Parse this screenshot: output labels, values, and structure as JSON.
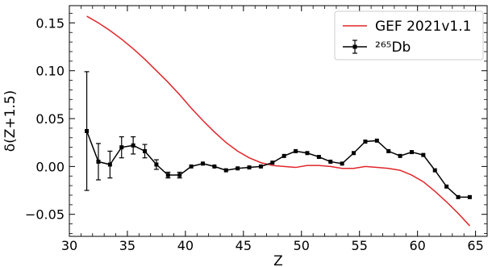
{
  "chart_data": {
    "type": "line",
    "xlabel": "Z",
    "ylabel": "δ(Z+1.5)",
    "xlim": [
      30,
      66
    ],
    "ylim": [
      -0.073,
      0.168
    ],
    "xticks": [
      30,
      35,
      40,
      45,
      50,
      55,
      60,
      65
    ],
    "xtick_labels": [
      "30",
      "35",
      "40",
      "45",
      "50",
      "55",
      "60",
      "65"
    ],
    "yticks": [
      -0.05,
      0.0,
      0.05,
      0.1,
      0.15
    ],
    "ytick_labels": [
      "−0.05",
      "0.00",
      "0.05",
      "0.10",
      "0.15"
    ],
    "grid": false,
    "legend_position": "top-right",
    "series": [
      {
        "name": "GEF 2021v1.1",
        "color": "#e0262a",
        "style": "line",
        "x": [
          31.5,
          32.5,
          33.5,
          34.5,
          35.5,
          36.5,
          37.5,
          38.5,
          39.5,
          40.5,
          41.5,
          42.5,
          43.5,
          44.5,
          45.5,
          46.5,
          47.5,
          48.5,
          49.5,
          50.5,
          51.5,
          52.5,
          53.5,
          54.5,
          55.5,
          56.5,
          57.5,
          58.5,
          59.5,
          60.5,
          61.5,
          62.5,
          63.5,
          64.5
        ],
        "y": [
          0.157,
          0.15,
          0.142,
          0.133,
          0.123,
          0.112,
          0.1,
          0.088,
          0.075,
          0.061,
          0.048,
          0.036,
          0.025,
          0.016,
          0.009,
          0.004,
          0.001,
          0.0,
          -0.001,
          0.001,
          0.001,
          0.0,
          -0.002,
          -0.002,
          0.0,
          -0.001,
          -0.002,
          -0.004,
          -0.009,
          -0.016,
          -0.026,
          -0.037,
          -0.049,
          -0.062
        ]
      },
      {
        "name": "²⁶⁵Db",
        "color": "#000000",
        "style": "errorbar",
        "x": [
          31.5,
          32.5,
          33.5,
          34.5,
          35.5,
          36.5,
          37.5,
          38.5,
          39.5,
          40.5,
          41.5,
          42.5,
          43.5,
          44.5,
          45.5,
          46.5,
          47.5,
          48.5,
          49.5,
          50.5,
          51.5,
          52.5,
          53.5,
          54.5,
          55.5,
          56.5,
          57.5,
          58.5,
          59.5,
          60.5,
          61.5,
          62.5,
          63.5,
          64.5
        ],
        "y": [
          0.037,
          0.005,
          0.002,
          0.02,
          0.022,
          0.016,
          0.002,
          -0.009,
          -0.009,
          0.0,
          0.003,
          0.0,
          -0.004,
          -0.002,
          -0.001,
          0.0,
          0.004,
          0.011,
          0.016,
          0.014,
          0.01,
          0.005,
          0.003,
          0.014,
          0.026,
          0.027,
          0.016,
          0.011,
          0.015,
          0.012,
          -0.004,
          -0.021,
          -0.032,
          -0.032
        ],
        "yerr": [
          0.062,
          0.019,
          0.014,
          0.011,
          0.009,
          0.007,
          0.005,
          0.003,
          0.003,
          0.002,
          0.002,
          0.001,
          0.001,
          0.001,
          0.001,
          0.001,
          0.001,
          0.001,
          0.001,
          0.001,
          0.001,
          0.001,
          0.001,
          0.001,
          0.001,
          0.001,
          0.001,
          0.001,
          0.001,
          0.001,
          0.001,
          0.001,
          0.001,
          0.001
        ]
      }
    ]
  }
}
